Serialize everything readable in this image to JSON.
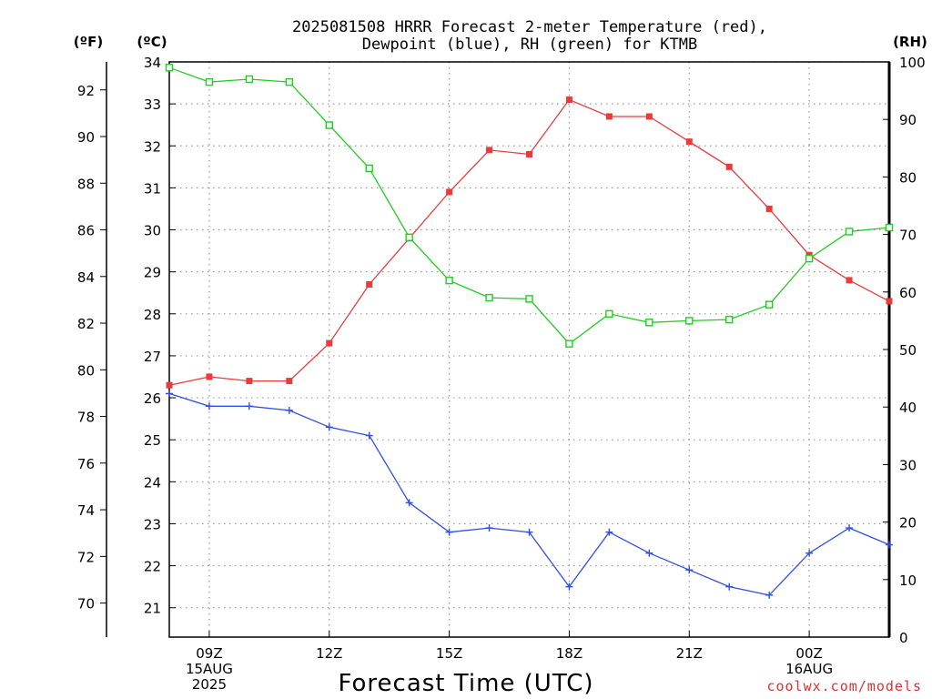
{
  "chart_data": {
    "type": "line",
    "title_lines": [
      "2025081508 HRRR Forecast 2-meter Temperature (red),",
      "Dewpoint (blue), RH (green) for KTMB"
    ],
    "xlabel": "Forecast Time (UTC)",
    "left_unit_f": "(ºF)",
    "left_unit_c": "(ºC)",
    "right_unit": "(RH)",
    "credit": "coolwx.com/models",
    "credit_color": "#e03030",
    "x_hours": [
      8,
      9,
      10,
      11,
      12,
      13,
      14,
      15,
      16,
      17,
      18,
      19,
      20,
      21,
      22,
      23,
      24,
      25,
      26
    ],
    "x_ticks": [
      {
        "hour": 9,
        "lines": [
          "09Z",
          "15AUG",
          "2025"
        ]
      },
      {
        "hour": 12,
        "lines": [
          "12Z"
        ]
      },
      {
        "hour": 15,
        "lines": [
          "15Z"
        ]
      },
      {
        "hour": 18,
        "lines": [
          "18Z"
        ]
      },
      {
        "hour": 21,
        "lines": [
          "21Z"
        ]
      },
      {
        "hour": 24,
        "lines": [
          "00Z",
          "16AUG"
        ]
      }
    ],
    "xlim": [
      8,
      26
    ],
    "celsius_axis": {
      "ylim": [
        20.3,
        34
      ],
      "ticks": [
        21,
        22,
        23,
        24,
        25,
        26,
        27,
        28,
        29,
        30,
        31,
        32,
        33,
        34
      ]
    },
    "fahrenheit_axis": {
      "ticks": [
        70,
        72,
        74,
        76,
        78,
        80,
        82,
        84,
        86,
        88,
        90,
        92
      ]
    },
    "rh_axis": {
      "ylim": [
        0,
        100
      ],
      "ticks": [
        0,
        10,
        20,
        30,
        40,
        50,
        60,
        70,
        80,
        90,
        100
      ]
    },
    "grid": true,
    "series": [
      {
        "name": "Temperature",
        "axis": "celsius",
        "color": "#e83c3c",
        "marker": "filled-square",
        "values": [
          26.3,
          26.5,
          26.4,
          26.4,
          27.3,
          28.7,
          29.8,
          30.9,
          31.9,
          31.8,
          33.1,
          32.7,
          32.7,
          32.1,
          31.5,
          30.5,
          29.4,
          28.8,
          28.3
        ]
      },
      {
        "name": "Dewpoint",
        "axis": "celsius",
        "color": "#2f4fe6",
        "marker": "plus",
        "values": [
          26.1,
          25.8,
          25.8,
          25.7,
          25.3,
          25.1,
          23.5,
          22.8,
          22.9,
          22.8,
          21.5,
          22.8,
          22.3,
          21.9,
          21.5,
          21.3,
          22.3,
          22.9,
          22.5
        ]
      },
      {
        "name": "RH",
        "axis": "rh",
        "color": "#22cc22",
        "marker": "open-square",
        "values": [
          99,
          96.5,
          97,
          96.5,
          89,
          81.5,
          69.5,
          62,
          59,
          58.8,
          51,
          56.2,
          54.7,
          55,
          55.2,
          57.8,
          65.8,
          70.5,
          71.2
        ]
      }
    ]
  }
}
